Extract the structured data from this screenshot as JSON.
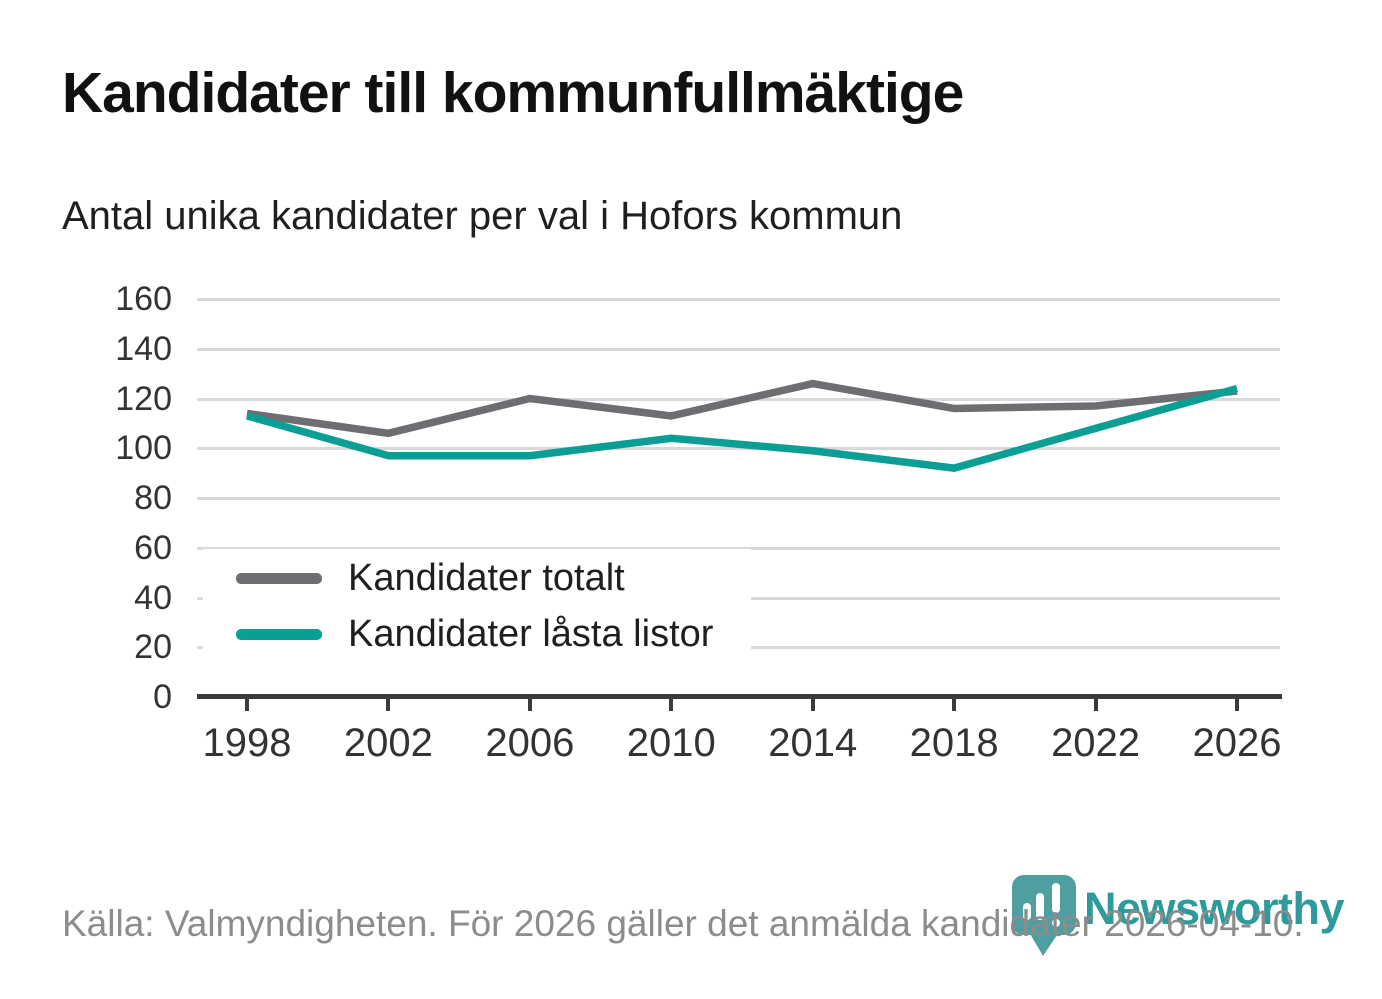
{
  "header": {
    "title": "Kandidater till kommunfullmäktige",
    "subtitle": "Antal unika kandidater per val i Hofors kommun"
  },
  "chart_data": {
    "type": "line",
    "categories": [
      "1998",
      "2002",
      "2006",
      "2010",
      "2014",
      "2018",
      "2022",
      "2026"
    ],
    "series": [
      {
        "name": "Kandidater totalt",
        "color": "#6f6d72",
        "values": [
          114,
          106,
          120,
          113,
          126,
          116,
          117,
          123
        ]
      },
      {
        "name": "Kandidater låsta listor",
        "color": "#0b9e94",
        "values": [
          113,
          97,
          97,
          104,
          99,
          92,
          108,
          124
        ]
      }
    ],
    "ylim": [
      0,
      160
    ],
    "ytick_step": 20,
    "xlabel": "",
    "ylabel": "",
    "grid": true,
    "legend_position": "inside-lower-left"
  },
  "footer": {
    "source": "Källa: Valmyndigheten. För 2026 gäller det anmälda kandidater 2026-04-10.",
    "logo_text": "Newsworthy",
    "logo_color": "#2d9a9b",
    "logo_icon_color": "#4f9fa1"
  },
  "colors": {
    "axis": "#3b3b3b",
    "grid": "#d9d9d9",
    "tick_text": "#333333"
  }
}
